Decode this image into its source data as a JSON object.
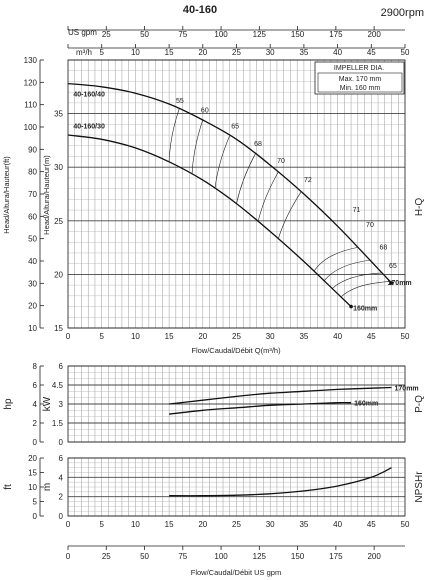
{
  "header": {
    "model": "40-160",
    "speed": "2900rpm"
  },
  "units": {
    "us_gpm": "US gpm",
    "m3h": "m³/h",
    "head_ft": "Head/Altura/Hauteur(ft)",
    "head_m": "Head/Altura/Hauteur(m)",
    "flow": "Flow/Caudal/Débit Q(m³/h)",
    "flow_bottom": "Flow/Caudal/Débit  US gpm",
    "hp": "hp",
    "kw": "kW",
    "ft": "ft",
    "m": "m",
    "hq": "H-Q",
    "pq": "P-Q",
    "npshr": "NPSHr"
  },
  "impeller_box": {
    "title": "IMPELLER DIA.",
    "max": "Max.  170  mm",
    "min": "Min.  160  mm"
  },
  "chart_data": [
    {
      "type": "line",
      "name": "H-Q",
      "xlim": [
        0,
        50
      ],
      "ylim_m": [
        15,
        40
      ],
      "ylim_ft": [
        10,
        130
      ],
      "x_ticks": [
        "0",
        "5",
        "10",
        "15",
        "20",
        "25",
        "30",
        "35",
        "40",
        "45",
        "50"
      ],
      "y_ticks_m": [
        "15",
        "20",
        "25",
        "30",
        "35"
      ],
      "y_ticks_ft": [
        "10",
        "20",
        "30",
        "40",
        "50",
        "60",
        "70",
        "80",
        "90",
        "100",
        "110",
        "120",
        "130"
      ],
      "top_x_ticks_gpm": [
        "0",
        "25",
        "50",
        "75",
        "100",
        "125",
        "150",
        "175",
        "200"
      ],
      "top_x_ticks_m3h": [
        "0",
        "5",
        "10",
        "15",
        "20",
        "25",
        "30",
        "35",
        "40",
        "45",
        "50"
      ],
      "grid": true,
      "series": [
        {
          "name": "40-160/40",
          "x": [
            0,
            5,
            10,
            15,
            20,
            25,
            30,
            35,
            40,
            45,
            48
          ],
          "y": [
            37.8,
            37.5,
            36.9,
            35.9,
            34.4,
            32.6,
            30.2,
            27.5,
            24.5,
            21.2,
            19.2
          ]
        },
        {
          "name": "40-160/30",
          "x": [
            0,
            5,
            10,
            15,
            20,
            25,
            30,
            35,
            40,
            42
          ],
          "y": [
            33.0,
            32.6,
            31.8,
            30.5,
            28.8,
            26.6,
            24.0,
            21.2,
            18.2,
            17.0
          ]
        }
      ],
      "curve_labels": [
        {
          "text": "170mm",
          "x": 48,
          "y": 19.2
        },
        {
          "text": "160mm",
          "x": 42,
          "y": 17.0
        }
      ],
      "efficiency_labels": [
        {
          "text": "55",
          "x": 16.6,
          "y": 36.0
        },
        {
          "text": "60",
          "x": 20.3,
          "y": 35.1
        },
        {
          "text": "65",
          "x": 24.8,
          "y": 33.6
        },
        {
          "text": "68",
          "x": 28.2,
          "y": 32.0
        },
        {
          "text": "70",
          "x": 31.6,
          "y": 30.4
        },
        {
          "text": "72",
          "x": 35.6,
          "y": 28.6
        },
        {
          "text": "71",
          "x": 42.8,
          "y": 25.8
        },
        {
          "text": "70",
          "x": 44.8,
          "y": 24.4
        },
        {
          "text": "68",
          "x": 46.8,
          "y": 22.3
        },
        {
          "text": "65",
          "x": 48.2,
          "y": 20.6
        }
      ]
    },
    {
      "type": "line",
      "name": "P-Q",
      "xlim": [
        0,
        50
      ],
      "ylim_kw": [
        0,
        6
      ],
      "ylim_hp": [
        0,
        8
      ],
      "y_ticks_kw": [
        "0",
        "1.5",
        "3",
        "4.5",
        "6"
      ],
      "y_ticks_hp": [
        "0",
        "2",
        "4",
        "6",
        "8"
      ],
      "grid": true,
      "series": [
        {
          "name": "170mm",
          "x": [
            15,
            20,
            25,
            30,
            35,
            40,
            45,
            48
          ],
          "y": [
            3.0,
            3.3,
            3.6,
            3.85,
            4.0,
            4.15,
            4.25,
            4.3
          ]
        },
        {
          "name": "160mm",
          "x": [
            15,
            20,
            25,
            30,
            35,
            40,
            42
          ],
          "y": [
            2.2,
            2.5,
            2.7,
            2.9,
            3.0,
            3.1,
            3.1
          ]
        }
      ],
      "labels": [
        "170mm",
        "160mm"
      ]
    },
    {
      "type": "line",
      "name": "NPSHr",
      "xlim": [
        0,
        50
      ],
      "ylim_m": [
        0,
        6
      ],
      "ylim_ft": [
        0,
        20
      ],
      "y_ticks_m": [
        "0",
        "2",
        "4",
        "6"
      ],
      "y_ticks_ft": [
        "0",
        "5",
        "10",
        "15",
        "20"
      ],
      "bottom_x_ticks_gpm": [
        "0",
        "25",
        "50",
        "75",
        "100",
        "125",
        "150",
        "175",
        "200"
      ],
      "grid": true,
      "series": [
        {
          "name": "NPSHr",
          "x": [
            15,
            20,
            25,
            30,
            35,
            40,
            45,
            48
          ],
          "y": [
            2.1,
            2.1,
            2.15,
            2.3,
            2.6,
            3.1,
            4.0,
            5.0
          ]
        }
      ]
    }
  ]
}
